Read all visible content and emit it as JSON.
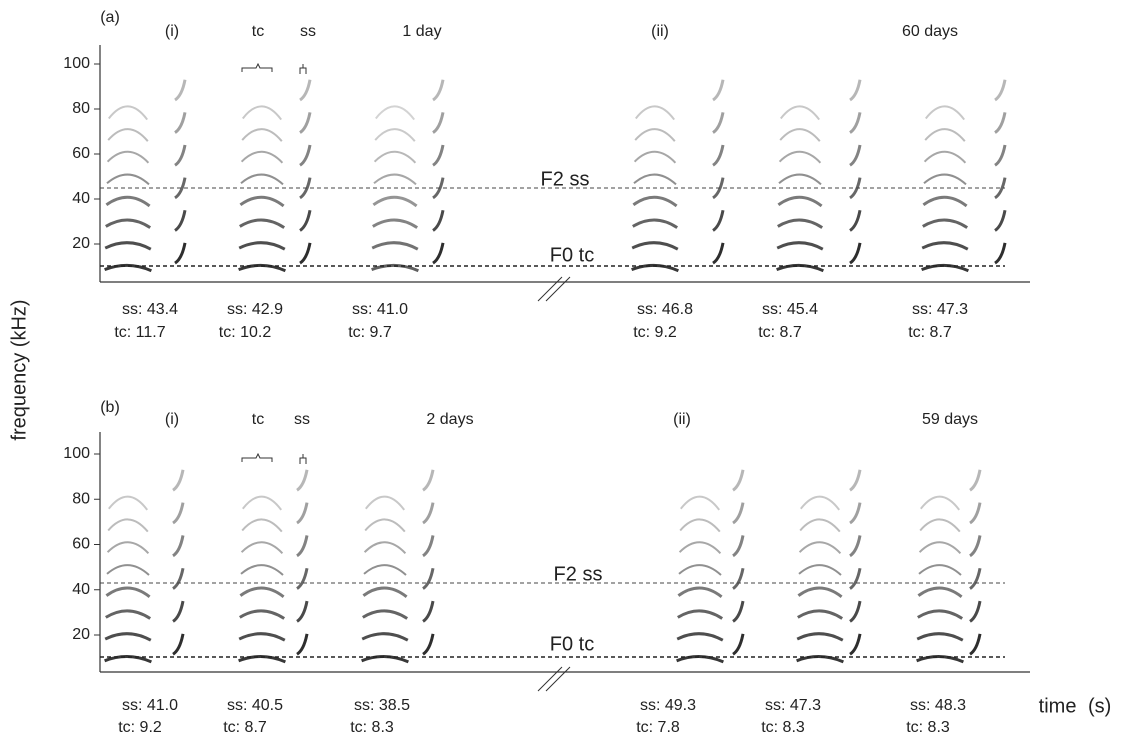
{
  "y_axis_label": "frequency (kHz)",
  "x_axis_label": "time (s)",
  "panels": [
    {
      "label": "(a)",
      "yticks": [
        20,
        40,
        60,
        80,
        100
      ],
      "sections": [
        {
          "label": "(i)",
          "age": "1 day"
        },
        {
          "label": "(ii)",
          "age": "60 days"
        }
      ],
      "markers": [
        "tc",
        "ss"
      ],
      "lines": [
        "F2 ss",
        "F0 tc"
      ],
      "measurements": [
        {
          "ss": "ss: 43.4",
          "tc": "tc: 11.7"
        },
        {
          "ss": "ss: 42.9",
          "tc": "tc: 10.2"
        },
        {
          "ss": "ss: 41.0",
          "tc": "tc: 9.7"
        },
        {
          "ss": "ss: 46.8",
          "tc": "tc: 9.2"
        },
        {
          "ss": "ss: 45.4",
          "tc": "tc: 8.7"
        },
        {
          "ss": "ss: 47.3",
          "tc": "tc: 8.7"
        }
      ]
    },
    {
      "label": "(b)",
      "yticks": [
        20,
        40,
        60,
        80,
        100
      ],
      "sections": [
        {
          "label": "(i)",
          "age": "2 days"
        },
        {
          "label": "(ii)",
          "age": "59 days"
        }
      ],
      "markers": [
        "tc",
        "ss"
      ],
      "lines": [
        "F2 ss",
        "F0 tc"
      ],
      "measurements": [
        {
          "ss": "ss: 41.0",
          "tc": "tc: 9.2"
        },
        {
          "ss": "ss: 40.5",
          "tc": "tc: 8.7"
        },
        {
          "ss": "ss: 38.5",
          "tc": "tc: 8.3"
        },
        {
          "ss": "ss: 49.3",
          "tc": "tc: 7.8"
        },
        {
          "ss": "ss: 47.3",
          "tc": "tc: 8.3"
        },
        {
          "ss": "ss: 48.3",
          "tc": "tc: 8.3"
        }
      ]
    }
  ]
}
